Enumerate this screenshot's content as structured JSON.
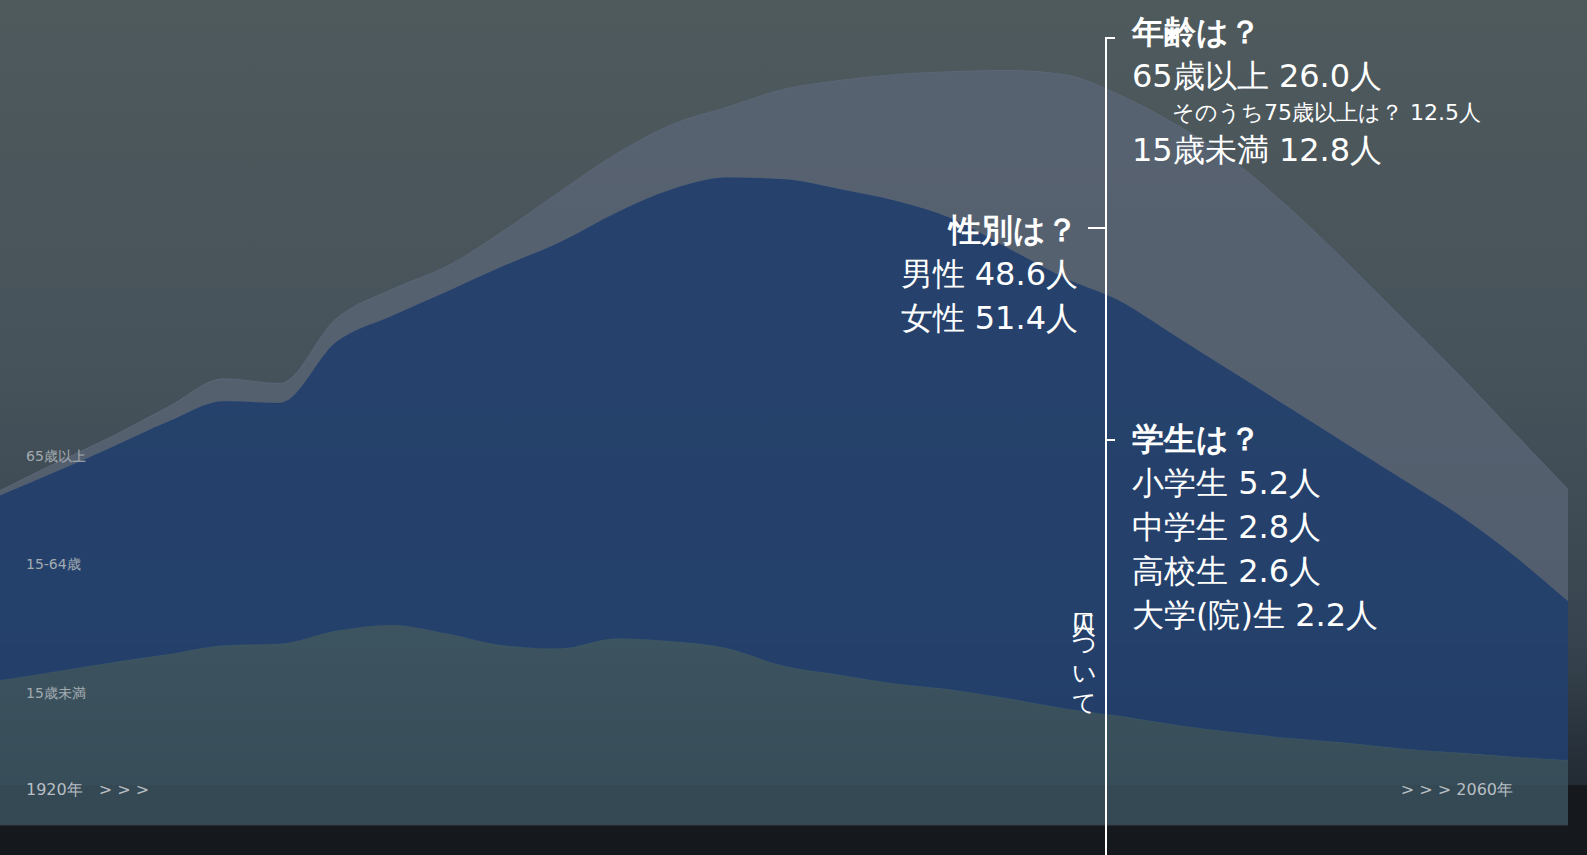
{
  "chart_data": {
    "type": "area",
    "stacked": true,
    "tick_labels": "x",
    "grid": false,
    "x": [
      1920,
      1925,
      1930,
      1935,
      1940,
      1945,
      1950,
      1955,
      1960,
      1965,
      1970,
      1975,
      1980,
      1985,
      1990,
      1995,
      2000,
      2005,
      2010,
      2015,
      2020,
      2025,
      2030,
      2035,
      2040,
      2045,
      2050,
      2055,
      2060
    ],
    "xlim": [
      1920,
      2060
    ],
    "xticks": [
      {
        "value": 1920,
        "label": "1920年　> > >"
      },
      {
        "value": 2060,
        "label": "> > > 2060年"
      }
    ],
    "ylim": [
      0,
      140
    ],
    "series": [
      {
        "name": "15歳未満",
        "color": "#3f5a66",
        "values": [
          24.6,
          26.1,
          27.6,
          29,
          30.5,
          30.8,
          33,
          34,
          32.5,
          30.5,
          30,
          31.7,
          31.2,
          30,
          27,
          25.5,
          24,
          23,
          21.5,
          19.8,
          18.5,
          17,
          15.8,
          14.8,
          14,
          13,
          12.3,
          11.6,
          11
        ]
      },
      {
        "name": "15-64歳",
        "color": "#22406e",
        "values": [
          31.4,
          33.9,
          36.6,
          39.5,
          41.5,
          40.9,
          49,
          52.5,
          58.2,
          64.5,
          69,
          72.3,
          76.8,
          80,
          82.7,
          82.5,
          82,
          80,
          76.5,
          73.2,
          70.5,
          66,
          61.2,
          56.2,
          51,
          46,
          40.7,
          34.4,
          27
        ]
      },
      {
        "name": "65歳以上",
        "color": "#5b6677",
        "values": [
          0.8,
          1.5,
          1.8,
          2.5,
          3.8,
          3.3,
          4,
          4.5,
          4.3,
          6,
          8.6,
          10,
          11,
          12,
          15.3,
          18.5,
          21.5,
          25,
          30.2,
          34.5,
          35,
          36,
          36,
          34,
          31,
          27.5,
          24,
          21,
          19
        ]
      }
    ],
    "annotations": {
      "side_label": "人口について",
      "age": {
        "title": "年齢は？",
        "items": [
          "65歳以上 26.0人",
          "そのうち75歳以上は？ 12.5人",
          "15歳未満 12.8人"
        ]
      },
      "sex": {
        "title": "性別は？",
        "items": [
          "男性 48.6人",
          "女性 51.4人"
        ]
      },
      "students": {
        "title": "学生は？",
        "items": [
          "小学生 5.2人",
          "中学生 2.8人",
          "高校生 2.6人",
          "大学(院)生 2.2人"
        ]
      }
    }
  }
}
